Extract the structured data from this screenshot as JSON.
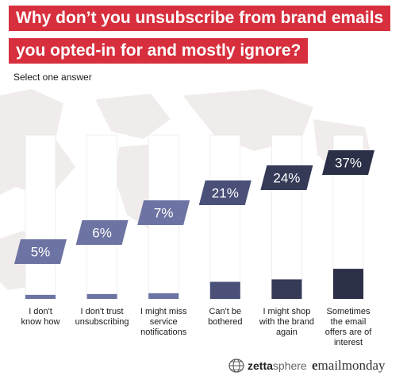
{
  "title_line_1": "Why don’t you unsubscribe from brand emails",
  "title_line_2": "you opted-in for and mostly ignore?",
  "subtitle": "Select one answer",
  "colors": {
    "title_bg": "#d72f3d",
    "bar_colors": [
      "#6d74a3",
      "#6d74a3",
      "#6d74a3",
      "#4a5078",
      "#353a57",
      "#2b2f47"
    ],
    "column_bg": "#ffffff",
    "background_map": "#ece7e6"
  },
  "chart_data": {
    "type": "bar",
    "categories": [
      "I don't know how",
      "I don't trust unsubscribing",
      "I might miss service notifications",
      "Can't be bothered",
      "I might shop with the brand again",
      "Sometimes the email offers are of interest"
    ],
    "category_lines": [
      [
        "I don't",
        "know how"
      ],
      [
        "I don't trust",
        "unsubscribing"
      ],
      [
        "I might miss",
        "service",
        "notifications"
      ],
      [
        "Can't be",
        "bothered"
      ],
      [
        "I might shop",
        "with the brand",
        "again"
      ],
      [
        "Sometimes",
        "the email",
        "offers are of",
        "interest"
      ]
    ],
    "values": [
      5,
      6,
      7,
      21,
      24,
      37
    ],
    "value_labels": [
      "5%",
      "6%",
      "7%",
      "21%",
      "24%",
      "37%"
    ],
    "ylim": [
      0,
      100
    ],
    "xlabel": "",
    "ylabel": "",
    "grid": false,
    "legend": "none"
  },
  "footer": {
    "logo1_part1": "zetta",
    "logo1_part2": "sphere",
    "logo2_part1": "e",
    "logo2_part2": "mailmonday"
  }
}
